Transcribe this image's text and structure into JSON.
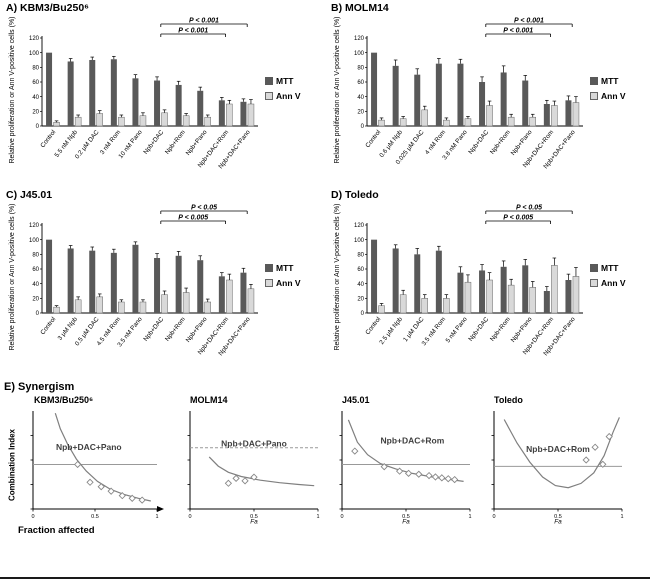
{
  "colors": {
    "mtt": "#595959",
    "annv": "#d9d9d9",
    "axis": "#000000",
    "curve": "#7f7f7f",
    "ref": "#999999",
    "label": "#3f3f3f"
  },
  "legend": {
    "mtt": "MTT",
    "annv": "Ann V"
  },
  "e_panel": {
    "title": "E) Synergism",
    "ylabel": "Combination Index",
    "xlabel": "Fraction affected"
  },
  "chart_data": [
    {
      "type": "bar",
      "panel": "A",
      "title": "A) KBM3/Bu250⁶",
      "ylabel": "Relative proliferation or Ann V-positive cells (%)",
      "ylim": [
        0,
        120
      ],
      "yticks": [
        0,
        20,
        40,
        60,
        80,
        100,
        120
      ],
      "categories": [
        "Control",
        "5.5 nM Npb",
        "0.2 μM DAC",
        "3 nM Rom",
        "10 nM Pano",
        "Npb+DAC",
        "Npb+Rom",
        "Npb+Pano",
        "Npb+DAC+Rom",
        "Npb+DAC+Pano"
      ],
      "series": [
        {
          "name": "MTT",
          "values": [
            100,
            88,
            90,
            91,
            65,
            62,
            56,
            48,
            35,
            33
          ],
          "errors": [
            0,
            4,
            4,
            4,
            5,
            5,
            5,
            5,
            4,
            4
          ]
        },
        {
          "name": "Ann V",
          "values": [
            5,
            12,
            17,
            12,
            14,
            18,
            14,
            12,
            30,
            30
          ],
          "errors": [
            2,
            3,
            4,
            3,
            4,
            4,
            3,
            3,
            5,
            6
          ]
        }
      ],
      "significance": [
        {
          "label": "P < 0.001",
          "from": 5,
          "to": 9,
          "level": 2
        },
        {
          "label": "P < 0.001",
          "from": 5,
          "to": 8,
          "level": 1
        }
      ]
    },
    {
      "type": "bar",
      "panel": "B",
      "title": "B) MOLM14",
      "ylabel": "Relative proliferation or Ann V-positive cells (%)",
      "ylim": [
        0,
        120
      ],
      "yticks": [
        0,
        20,
        40,
        60,
        80,
        100,
        120
      ],
      "categories": [
        "Control",
        "0.6 μM Npb",
        "0.025 μM DAC",
        "4 nM Rom",
        "3.8 nM Pano",
        "Npb+DAC",
        "Npb+Rom",
        "Npb+Pano",
        "Npb+DAC+Rom",
        "Npb+DAC+Pano"
      ],
      "series": [
        {
          "name": "MTT",
          "values": [
            100,
            82,
            70,
            85,
            85,
            60,
            73,
            62,
            30,
            35
          ],
          "errors": [
            0,
            8,
            8,
            7,
            6,
            7,
            9,
            7,
            5,
            6
          ]
        },
        {
          "name": "Ann V",
          "values": [
            8,
            10,
            22,
            8,
            10,
            28,
            12,
            12,
            28,
            32
          ],
          "errors": [
            3,
            3,
            5,
            3,
            3,
            6,
            4,
            4,
            6,
            8
          ]
        }
      ],
      "significance": [
        {
          "label": "P < 0.001",
          "from": 5,
          "to": 9,
          "level": 2
        },
        {
          "label": "P < 0.001",
          "from": 5,
          "to": 8,
          "level": 1
        }
      ]
    },
    {
      "type": "bar",
      "panel": "C",
      "title": "C) J45.01",
      "ylabel": "Relative proliferation or Ann V-positive cells (%)",
      "ylim": [
        0,
        120
      ],
      "yticks": [
        0,
        20,
        40,
        60,
        80,
        100,
        120
      ],
      "categories": [
        "Control",
        "3 μM Npb",
        "0.5 μM DAC",
        "4.5 nM Rom",
        "3.5 nM Pano",
        "Npb+DAC",
        "Npb+Rom",
        "Npb+Pano",
        "Npb+DAC+Rom",
        "Npb+DAC+Pano"
      ],
      "series": [
        {
          "name": "MTT",
          "values": [
            100,
            88,
            85,
            82,
            93,
            75,
            78,
            72,
            50,
            55
          ],
          "errors": [
            0,
            4,
            5,
            5,
            4,
            6,
            6,
            6,
            5,
            6
          ]
        },
        {
          "name": "Ann V",
          "values": [
            8,
            18,
            22,
            15,
            15,
            25,
            28,
            15,
            45,
            33
          ],
          "errors": [
            2,
            4,
            4,
            3,
            3,
            5,
            6,
            4,
            8,
            6
          ]
        }
      ],
      "significance": [
        {
          "label": "P < 0.05",
          "from": 5,
          "to": 9,
          "level": 2
        },
        {
          "label": "P < 0.005",
          "from": 5,
          "to": 8,
          "level": 1
        }
      ]
    },
    {
      "type": "bar",
      "panel": "D",
      "title": "D) Toledo",
      "ylabel": "Relative proliferation or Ann V-positive cells (%)",
      "ylim": [
        0,
        120
      ],
      "yticks": [
        0,
        20,
        40,
        60,
        80,
        100,
        120
      ],
      "categories": [
        "Control",
        "2.5 μM Npb",
        "1 μM DAC",
        "3.5 nM Rom",
        "5 nM Pano",
        "Npb+DAC",
        "Npb+Rom",
        "Npb+Pano",
        "Npb+DAC+Rom",
        "Npb+DAC+Pano"
      ],
      "series": [
        {
          "name": "MTT",
          "values": [
            100,
            88,
            80,
            85,
            55,
            58,
            63,
            65,
            30,
            45
          ],
          "errors": [
            0,
            5,
            8,
            6,
            8,
            8,
            8,
            8,
            6,
            8
          ]
        },
        {
          "name": "Ann V",
          "values": [
            10,
            25,
            20,
            20,
            42,
            45,
            38,
            35,
            65,
            50
          ],
          "errors": [
            3,
            6,
            5,
            5,
            10,
            10,
            8,
            8,
            10,
            12
          ]
        }
      ],
      "significance": [
        {
          "label": "P < 0.05",
          "from": 5,
          "to": 9,
          "level": 2
        },
        {
          "label": "P < 0.005",
          "from": 5,
          "to": 8,
          "level": 1
        }
      ]
    },
    {
      "type": "scatter",
      "panel": "E1",
      "title": "KBM3/Bu250⁶",
      "label": "Npb+DAC+Pano",
      "label_fx": 0.45,
      "label_fy": 0.4,
      "xlim": [
        0,
        1
      ],
      "ylim": [
        0,
        2.2
      ],
      "xticks": [
        0,
        0.5,
        1
      ],
      "xlabel": "",
      "ref_y": 1,
      "ref_style": "solid",
      "axis_arrows": true,
      "curve": [
        [
          0.18,
          2.15
        ],
        [
          0.22,
          1.8
        ],
        [
          0.28,
          1.45
        ],
        [
          0.35,
          1.12
        ],
        [
          0.43,
          0.85
        ],
        [
          0.52,
          0.62
        ],
        [
          0.62,
          0.45
        ],
        [
          0.73,
          0.33
        ],
        [
          0.85,
          0.24
        ],
        [
          0.95,
          0.18
        ]
      ],
      "points": [
        [
          0.36,
          1.0
        ],
        [
          0.46,
          0.6
        ],
        [
          0.55,
          0.5
        ],
        [
          0.63,
          0.4
        ],
        [
          0.72,
          0.3
        ],
        [
          0.8,
          0.24
        ],
        [
          0.88,
          0.2
        ]
      ]
    },
    {
      "type": "scatter",
      "panel": "E2",
      "title": "MOLM14",
      "label": "Npb+DAC+Pano",
      "label_fx": 0.5,
      "label_fy": 0.36,
      "xlim": [
        0,
        1
      ],
      "ylim": [
        0,
        1.6
      ],
      "xticks": [
        0,
        0.5,
        1
      ],
      "xlabel": "Fa",
      "ref_y": 1,
      "ref_style": "dashed",
      "axis_arrows": false,
      "curve": [
        [
          0.15,
          0.85
        ],
        [
          0.22,
          0.7
        ],
        [
          0.3,
          0.6
        ],
        [
          0.4,
          0.53
        ],
        [
          0.55,
          0.47
        ],
        [
          0.7,
          0.43
        ],
        [
          0.85,
          0.4
        ],
        [
          0.97,
          0.38
        ]
      ],
      "points": [
        [
          0.3,
          0.42
        ],
        [
          0.36,
          0.5
        ],
        [
          0.43,
          0.46
        ],
        [
          0.5,
          0.52
        ]
      ]
    },
    {
      "type": "scatter",
      "panel": "E3",
      "title": "J45.01",
      "label": "Npb+DAC+Rom",
      "label_fx": 0.55,
      "label_fy": 0.33,
      "xlim": [
        0,
        1
      ],
      "ylim": [
        0,
        2.2
      ],
      "xticks": [
        0,
        0.5,
        1
      ],
      "xlabel": "Fa",
      "ref_y": 1,
      "ref_style": "solid",
      "axis_arrows": false,
      "curve": [
        [
          0.05,
          2.0
        ],
        [
          0.12,
          1.5
        ],
        [
          0.2,
          1.22
        ],
        [
          0.3,
          1.02
        ],
        [
          0.42,
          0.9
        ],
        [
          0.55,
          0.8
        ],
        [
          0.7,
          0.72
        ],
        [
          0.85,
          0.66
        ],
        [
          0.95,
          0.62
        ]
      ],
      "points": [
        [
          0.1,
          1.3
        ],
        [
          0.33,
          0.95
        ],
        [
          0.45,
          0.85
        ],
        [
          0.52,
          0.8
        ],
        [
          0.6,
          0.78
        ],
        [
          0.68,
          0.75
        ],
        [
          0.73,
          0.72
        ],
        [
          0.78,
          0.7
        ],
        [
          0.83,
          0.68
        ],
        [
          0.88,
          0.66
        ]
      ]
    },
    {
      "type": "scatter",
      "panel": "E4",
      "title": "Toledo",
      "label": "Npb+DAC+Rom",
      "label_fx": 0.5,
      "label_fy": 0.42,
      "xlim": [
        0,
        1
      ],
      "ylim": [
        0,
        2.3
      ],
      "xticks": [
        0,
        0.5,
        1
      ],
      "xlabel": "Fa",
      "ref_y": 1,
      "ref_style": "solid",
      "axis_arrows": false,
      "curve": [
        [
          0.08,
          2.1
        ],
        [
          0.18,
          1.55
        ],
        [
          0.28,
          1.1
        ],
        [
          0.38,
          0.75
        ],
        [
          0.48,
          0.55
        ],
        [
          0.58,
          0.5
        ],
        [
          0.68,
          0.6
        ],
        [
          0.78,
          0.85
        ],
        [
          0.86,
          1.25
        ],
        [
          0.93,
          1.8
        ],
        [
          0.98,
          2.15
        ]
      ],
      "points": [
        [
          0.72,
          1.15
        ],
        [
          0.79,
          1.45
        ],
        [
          0.85,
          1.05
        ],
        [
          0.9,
          1.7
        ]
      ]
    }
  ]
}
